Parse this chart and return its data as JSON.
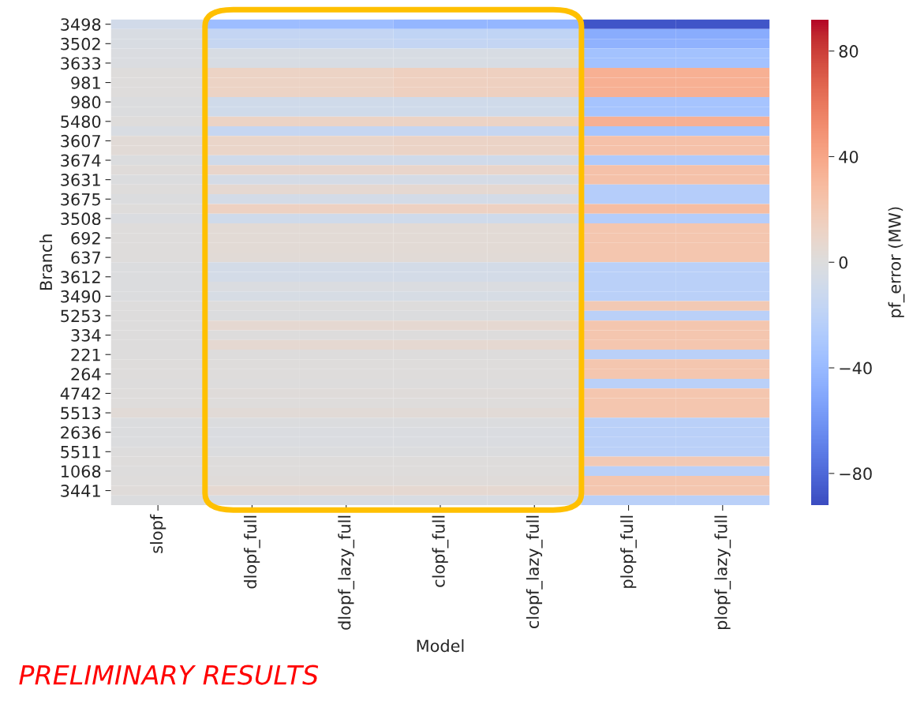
{
  "chart_data": {
    "type": "heatmap",
    "xlabel": "Model",
    "ylabel": "Branch",
    "clabel": "pf_error (MW)",
    "categories": [
      "slopf",
      "dlopf_full",
      "dlopf_lazy_full",
      "clopf_full",
      "clopf_lazy_full",
      "plopf_full",
      "plopf_lazy_full"
    ],
    "y_categories": [
      "3498",
      null,
      "3502",
      null,
      "3633",
      null,
      "981",
      null,
      "980",
      null,
      "5480",
      null,
      "3607",
      null,
      "3674",
      null,
      "3631",
      null,
      "3675",
      null,
      "3508",
      null,
      "692",
      null,
      "637",
      null,
      "3612",
      null,
      "3490",
      null,
      "5253",
      null,
      "334",
      null,
      "221",
      null,
      "264",
      null,
      "4742",
      null,
      "5513",
      null,
      "2636",
      null,
      "5511",
      null,
      "1068",
      null,
      "3441",
      null
    ],
    "cells": [
      [
        -8,
        -38,
        -38,
        -42,
        -42,
        -88,
        -88
      ],
      [
        -3,
        -16,
        -16,
        -18,
        -18,
        -48,
        -48
      ],
      [
        -3,
        -15,
        -15,
        -16,
        -16,
        -44,
        -44
      ],
      [
        -2,
        -4,
        -4,
        -4,
        -4,
        -34,
        -34
      ],
      [
        -2,
        -4,
        -4,
        -4,
        -4,
        -34,
        -34
      ],
      [
        1,
        12,
        12,
        14,
        14,
        35,
        35
      ],
      [
        1,
        12,
        12,
        14,
        14,
        35,
        35
      ],
      [
        1,
        12,
        12,
        14,
        14,
        35,
        35
      ],
      [
        -1,
        -9,
        -9,
        -9,
        -9,
        -33,
        -33
      ],
      [
        -1,
        -9,
        -9,
        -9,
        -9,
        -33,
        -33
      ],
      [
        1,
        12,
        12,
        12,
        12,
        35,
        35
      ],
      [
        -3,
        -15,
        -15,
        -15,
        -15,
        -32,
        -32
      ],
      [
        3,
        10,
        10,
        11,
        11,
        25,
        25
      ],
      [
        3,
        10,
        10,
        11,
        11,
        25,
        25
      ],
      [
        -1,
        -9,
        -9,
        -9,
        -9,
        -28,
        -28
      ],
      [
        2,
        9,
        9,
        9,
        9,
        25,
        25
      ],
      [
        -1,
        -6,
        -6,
        -6,
        -6,
        25,
        25
      ],
      [
        1,
        6,
        6,
        6,
        6,
        -25,
        -25
      ],
      [
        -1,
        -7,
        -7,
        -7,
        -7,
        -25,
        -25
      ],
      [
        1,
        13,
        13,
        13,
        13,
        28,
        28
      ],
      [
        -2,
        -9,
        -9,
        -9,
        -9,
        -25,
        -25
      ],
      [
        1,
        4,
        4,
        4,
        4,
        22,
        22
      ],
      [
        1,
        4,
        4,
        4,
        4,
        22,
        22
      ],
      [
        1,
        4,
        4,
        4,
        4,
        22,
        22
      ],
      [
        1,
        3,
        3,
        3,
        3,
        22,
        22
      ],
      [
        -1,
        -7,
        -7,
        -7,
        -7,
        -22,
        -22
      ],
      [
        -1,
        -7,
        -7,
        -7,
        -7,
        -22,
        -22
      ],
      [
        -1,
        -2,
        -2,
        -2,
        -2,
        -22,
        -22
      ],
      [
        -1,
        -5,
        -5,
        -5,
        -5,
        -22,
        -22
      ],
      [
        0,
        0,
        0,
        0,
        0,
        20,
        20
      ],
      [
        0,
        -1,
        -1,
        -1,
        -1,
        -22,
        -22
      ],
      [
        0,
        6,
        6,
        6,
        6,
        22,
        22
      ],
      [
        0,
        0,
        0,
        0,
        0,
        22,
        22
      ],
      [
        0,
        6,
        6,
        6,
        6,
        22,
        22
      ],
      [
        0,
        0,
        0,
        0,
        0,
        -22,
        -22
      ],
      [
        1,
        1,
        1,
        1,
        1,
        22,
        22
      ],
      [
        1,
        1,
        1,
        1,
        1,
        22,
        22
      ],
      [
        0,
        0,
        0,
        0,
        0,
        -22,
        -22
      ],
      [
        1,
        2,
        2,
        2,
        2,
        22,
        22
      ],
      [
        1,
        1,
        1,
        1,
        1,
        22,
        22
      ],
      [
        3,
        3,
        3,
        3,
        3,
        22,
        22
      ],
      [
        -1,
        -1,
        -1,
        -1,
        -1,
        -22,
        -22
      ],
      [
        -1,
        -2,
        -2,
        -2,
        -2,
        -22,
        -22
      ],
      [
        -1,
        -2,
        -2,
        -2,
        -2,
        -22,
        -22
      ],
      [
        0,
        -1,
        -1,
        -1,
        -1,
        -22,
        -22
      ],
      [
        1,
        1,
        1,
        1,
        1,
        20,
        20
      ],
      [
        0,
        1,
        1,
        1,
        1,
        -22,
        -22
      ],
      [
        1,
        2,
        2,
        2,
        2,
        22,
        22
      ],
      [
        2,
        6,
        6,
        6,
        6,
        22,
        22
      ],
      [
        -1,
        -3,
        -3,
        -3,
        -3,
        -22,
        -22
      ]
    ],
    "clim": [
      -92,
      92
    ],
    "cticks": [
      -80,
      -40,
      0,
      40,
      80
    ],
    "annotations": [
      "PRELIMINARY RESULTS"
    ]
  }
}
